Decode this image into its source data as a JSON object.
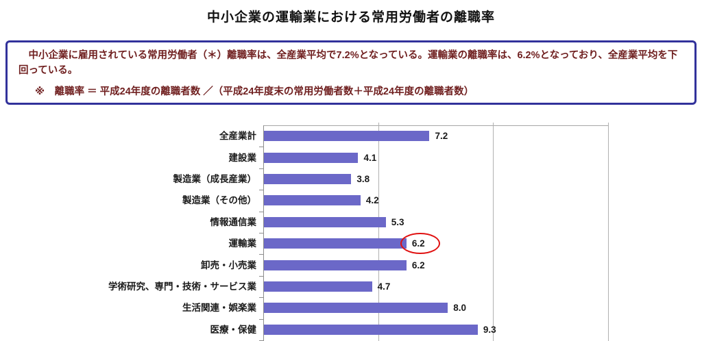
{
  "title": "中小企業の運輸業における常用労働者の離職率",
  "info_box": {
    "summary": "　中小企業に雇用されている常用労働者（＊）離職率は、全産業平均で7.2%となっている。運輸業の離職率は、6.2%となっており、全産業平均を下回っている。",
    "note": "※　離職率 ＝ 平成24年度の離職者数 ／（平成24年度末の常用労働者数＋平成24年度の離職者数）",
    "border_color": "#32329b",
    "text_color": "#702020"
  },
  "chart_data": {
    "type": "bar",
    "orientation": "horizontal",
    "title": "",
    "xlabel": "",
    "ylabel": "",
    "categories": [
      "全産業計",
      "建設業",
      "製造業（成長産業）",
      "製造業（その他）",
      "情報通信業",
      "運輸業",
      "卸売・小売業",
      "学術研究、専門・技術・サービス業",
      "生活関連・娯楽業",
      "医療・保健"
    ],
    "values": [
      7.2,
      4.1,
      3.8,
      4.2,
      5.3,
      6.2,
      6.2,
      4.7,
      8.0,
      9.3
    ],
    "value_labels": [
      "7.2",
      "4.1",
      "3.8",
      "4.2",
      "5.3",
      "6.2",
      "6.2",
      "4.7",
      "8.0",
      "9.3"
    ],
    "xlim": [
      0,
      15
    ],
    "gridline_step": 5,
    "grid": true,
    "legend": false,
    "bar_color": "#6b68c8",
    "annotation": {
      "type": "red-circle",
      "category": "運輸業",
      "category_index": 5,
      "value": 6.2,
      "color": "#e01010"
    }
  }
}
